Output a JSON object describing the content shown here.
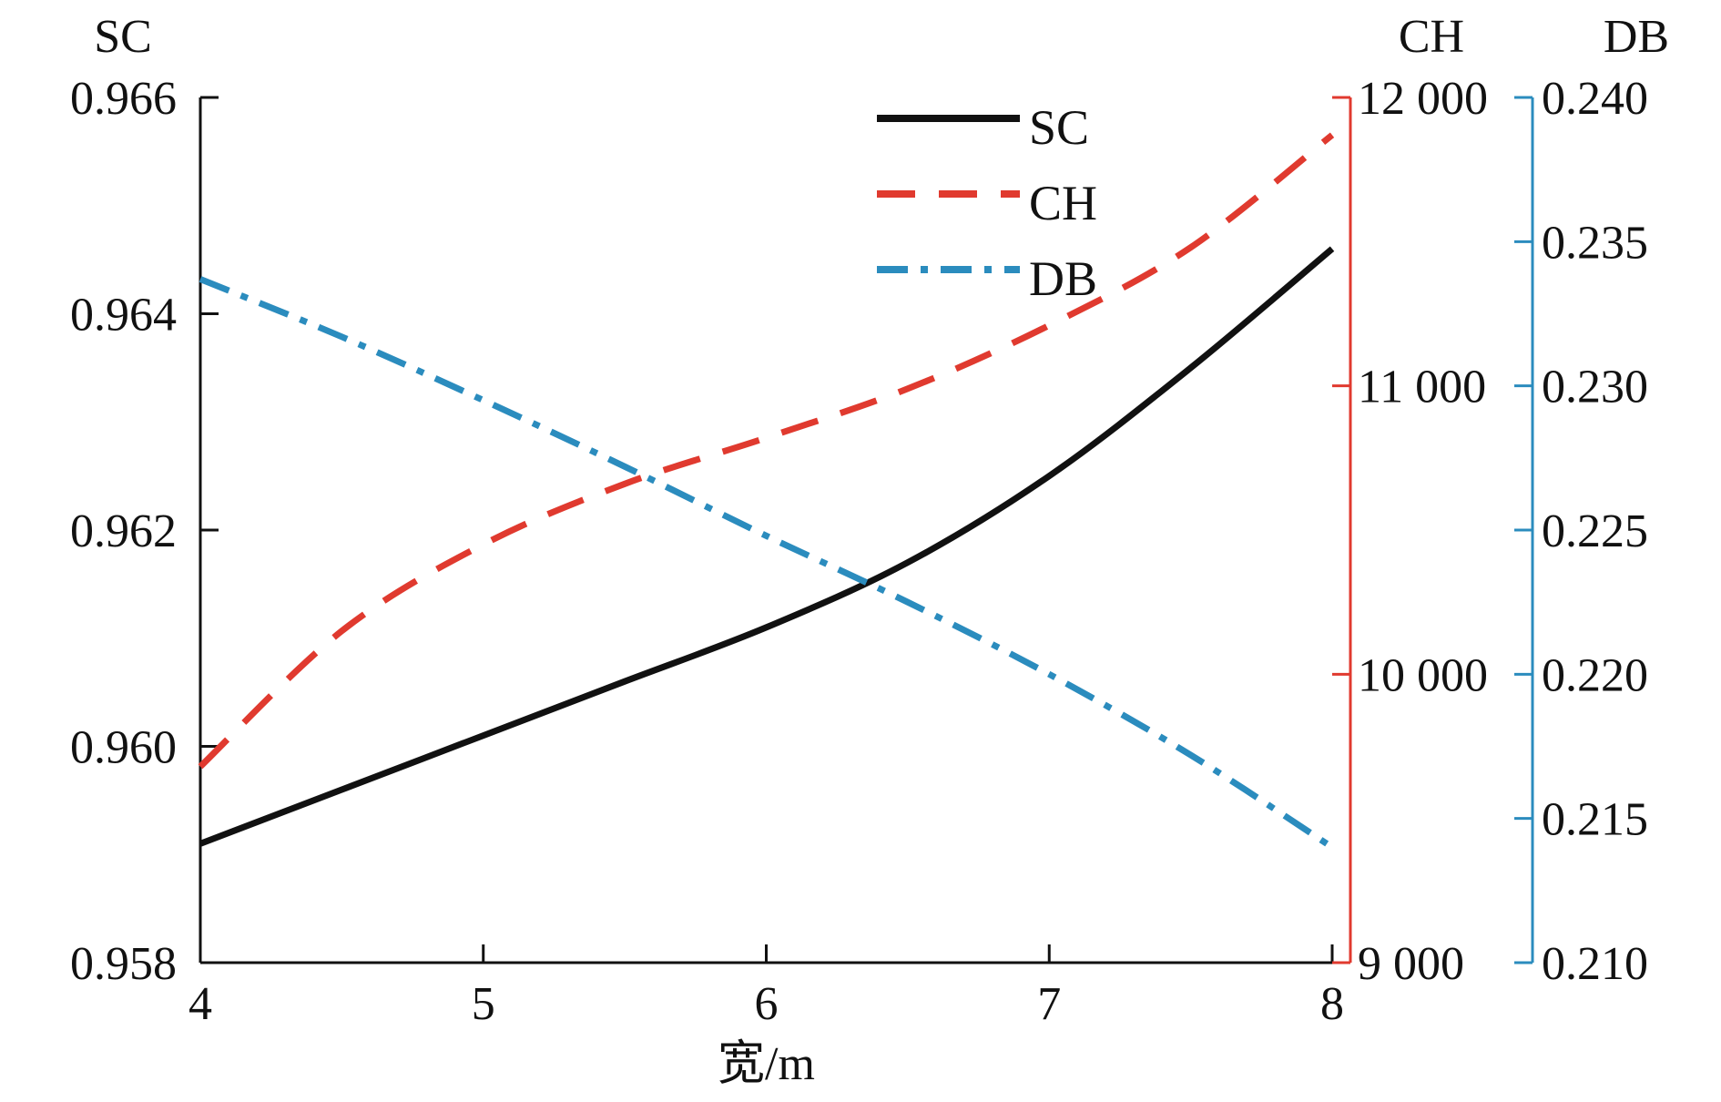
{
  "chart_data": {
    "type": "line",
    "xlabel": "宽/m",
    "x_ticks": [
      4,
      5,
      6,
      7,
      8
    ],
    "x_tick_labels": [
      "4",
      "5",
      "6",
      "7",
      "8"
    ],
    "xlim": [
      4,
      8
    ],
    "axes": {
      "SC": {
        "title": "SC",
        "color": "#111111",
        "ylim": [
          0.958,
          0.966
        ],
        "ticks": [
          0.958,
          0.96,
          0.962,
          0.964,
          0.966
        ],
        "tick_labels": [
          "0.958",
          "0.960",
          "0.962",
          "0.964",
          "0.966"
        ]
      },
      "CH": {
        "title": "CH",
        "color": "#e03a2f",
        "ylim": [
          9000,
          12000
        ],
        "ticks": [
          9000,
          10000,
          11000,
          12000
        ],
        "tick_labels": [
          "9 000",
          "10 000",
          "11 000",
          "12 000"
        ]
      },
      "DB": {
        "title": "DB",
        "color": "#2b8cbe",
        "ylim": [
          0.21,
          0.24
        ],
        "ticks": [
          0.21,
          0.215,
          0.22,
          0.225,
          0.23,
          0.235,
          0.24
        ],
        "tick_labels": [
          "0.210",
          "0.215",
          "0.220",
          "0.225",
          "0.230",
          "0.235",
          "0.240"
        ]
      }
    },
    "series": [
      {
        "name": "SC",
        "axis": "SC",
        "color": "#111111",
        "dash": "solid",
        "x": [
          4.0,
          4.5,
          5.0,
          5.5,
          6.0,
          6.5,
          7.0,
          7.5,
          8.0
        ],
        "values": [
          0.9591,
          0.9596,
          0.9601,
          0.9606,
          0.9611,
          0.9617,
          0.9625,
          0.9635,
          0.9646
        ]
      },
      {
        "name": "CH",
        "axis": "CH",
        "color": "#e03a2f",
        "dash": "dash",
        "x": [
          4.0,
          4.5,
          5.0,
          5.5,
          6.0,
          6.5,
          7.0,
          7.5,
          8.0
        ],
        "values": [
          9680,
          10150,
          10450,
          10660,
          10820,
          10990,
          11210,
          11480,
          11870
        ]
      },
      {
        "name": "DB",
        "axis": "DB",
        "color": "#2b8cbe",
        "dash": "dashdot",
        "x": [
          4.0,
          4.5,
          5.0,
          5.5,
          6.0,
          6.5,
          7.0,
          7.5,
          8.0
        ],
        "values": [
          0.2337,
          0.2317,
          0.2295,
          0.2272,
          0.2248,
          0.2225,
          0.22,
          0.2172,
          0.214
        ]
      }
    ],
    "legend": [
      "SC",
      "CH",
      "DB"
    ],
    "legend_position": "top-right"
  }
}
